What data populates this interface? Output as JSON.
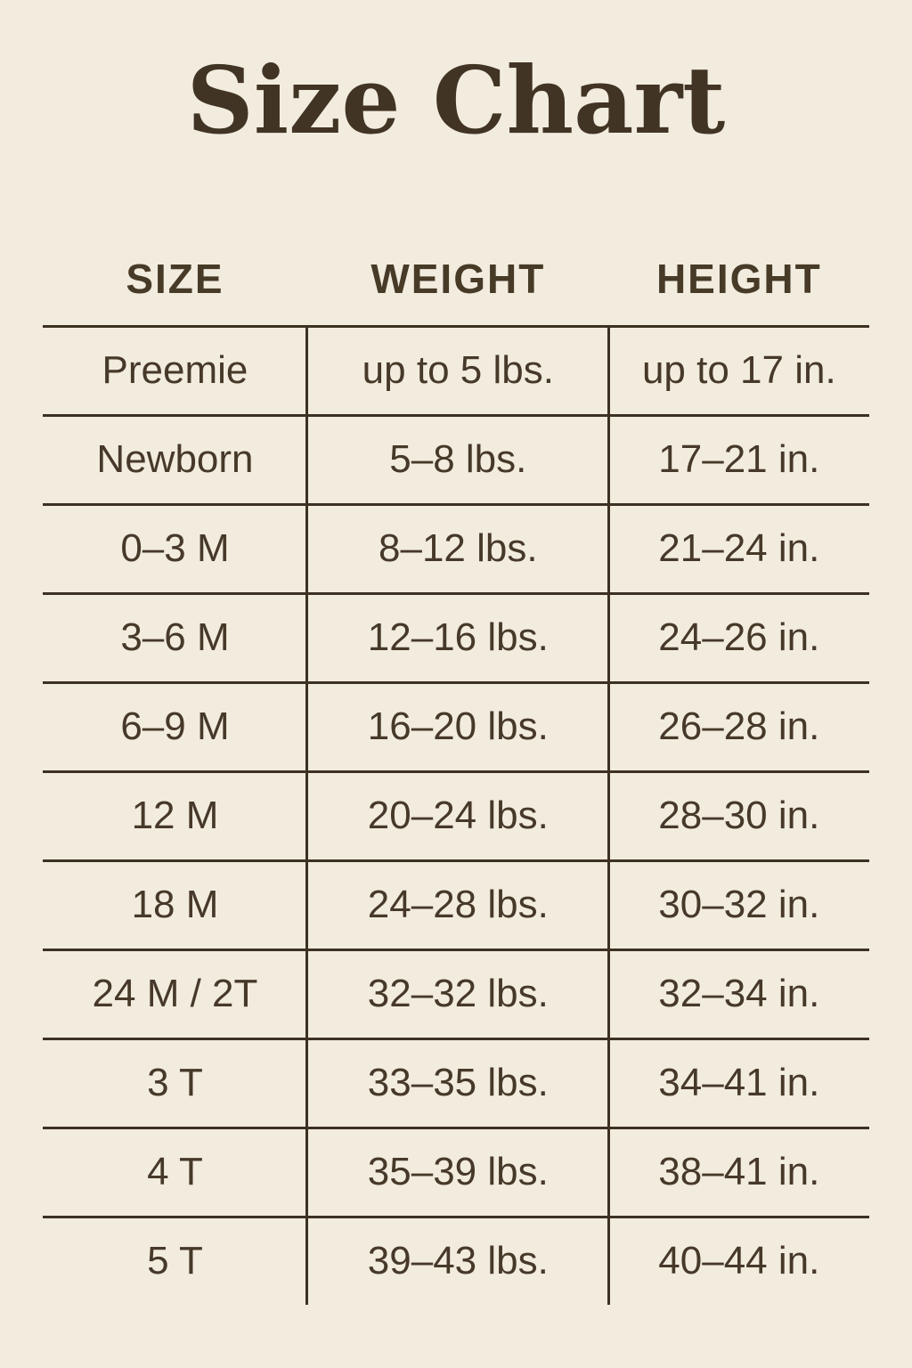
{
  "title": "Size Chart",
  "colors": {
    "background": "#f2ecdf",
    "text": "#47392a",
    "title_text": "#423424",
    "grid_lines": "#3c3122"
  },
  "chart_data": {
    "type": "table",
    "title": "Size Chart",
    "columns": [
      "SIZE",
      "WEIGHT",
      "HEIGHT"
    ],
    "rows": [
      [
        "Preemie",
        "up to 5 lbs.",
        "up to 17 in."
      ],
      [
        "Newborn",
        "5–8 lbs.",
        "17–21 in."
      ],
      [
        "0–3 M",
        "8–12 lbs.",
        "21–24 in."
      ],
      [
        "3–6 M",
        "12–16 lbs.",
        "24–26 in."
      ],
      [
        "6–9 M",
        "16–20 lbs.",
        "26–28 in."
      ],
      [
        "12 M",
        "20–24 lbs.",
        "28–30 in."
      ],
      [
        "18 M",
        "24–28 lbs.",
        "30–32 in."
      ],
      [
        "24 M / 2T",
        "32–32 lbs.",
        "32–34 in."
      ],
      [
        "3 T",
        "33–35 lbs.",
        "34–41 in."
      ],
      [
        "4 T",
        "35–39 lbs.",
        "38–41 in."
      ],
      [
        "5 T",
        "39–43 lbs.",
        "40–44 in."
      ]
    ],
    "layout": {
      "grid": "horizontal row separators plus two inner column dividers, no outer border, no line below last row",
      "column_alignment": "center"
    }
  }
}
